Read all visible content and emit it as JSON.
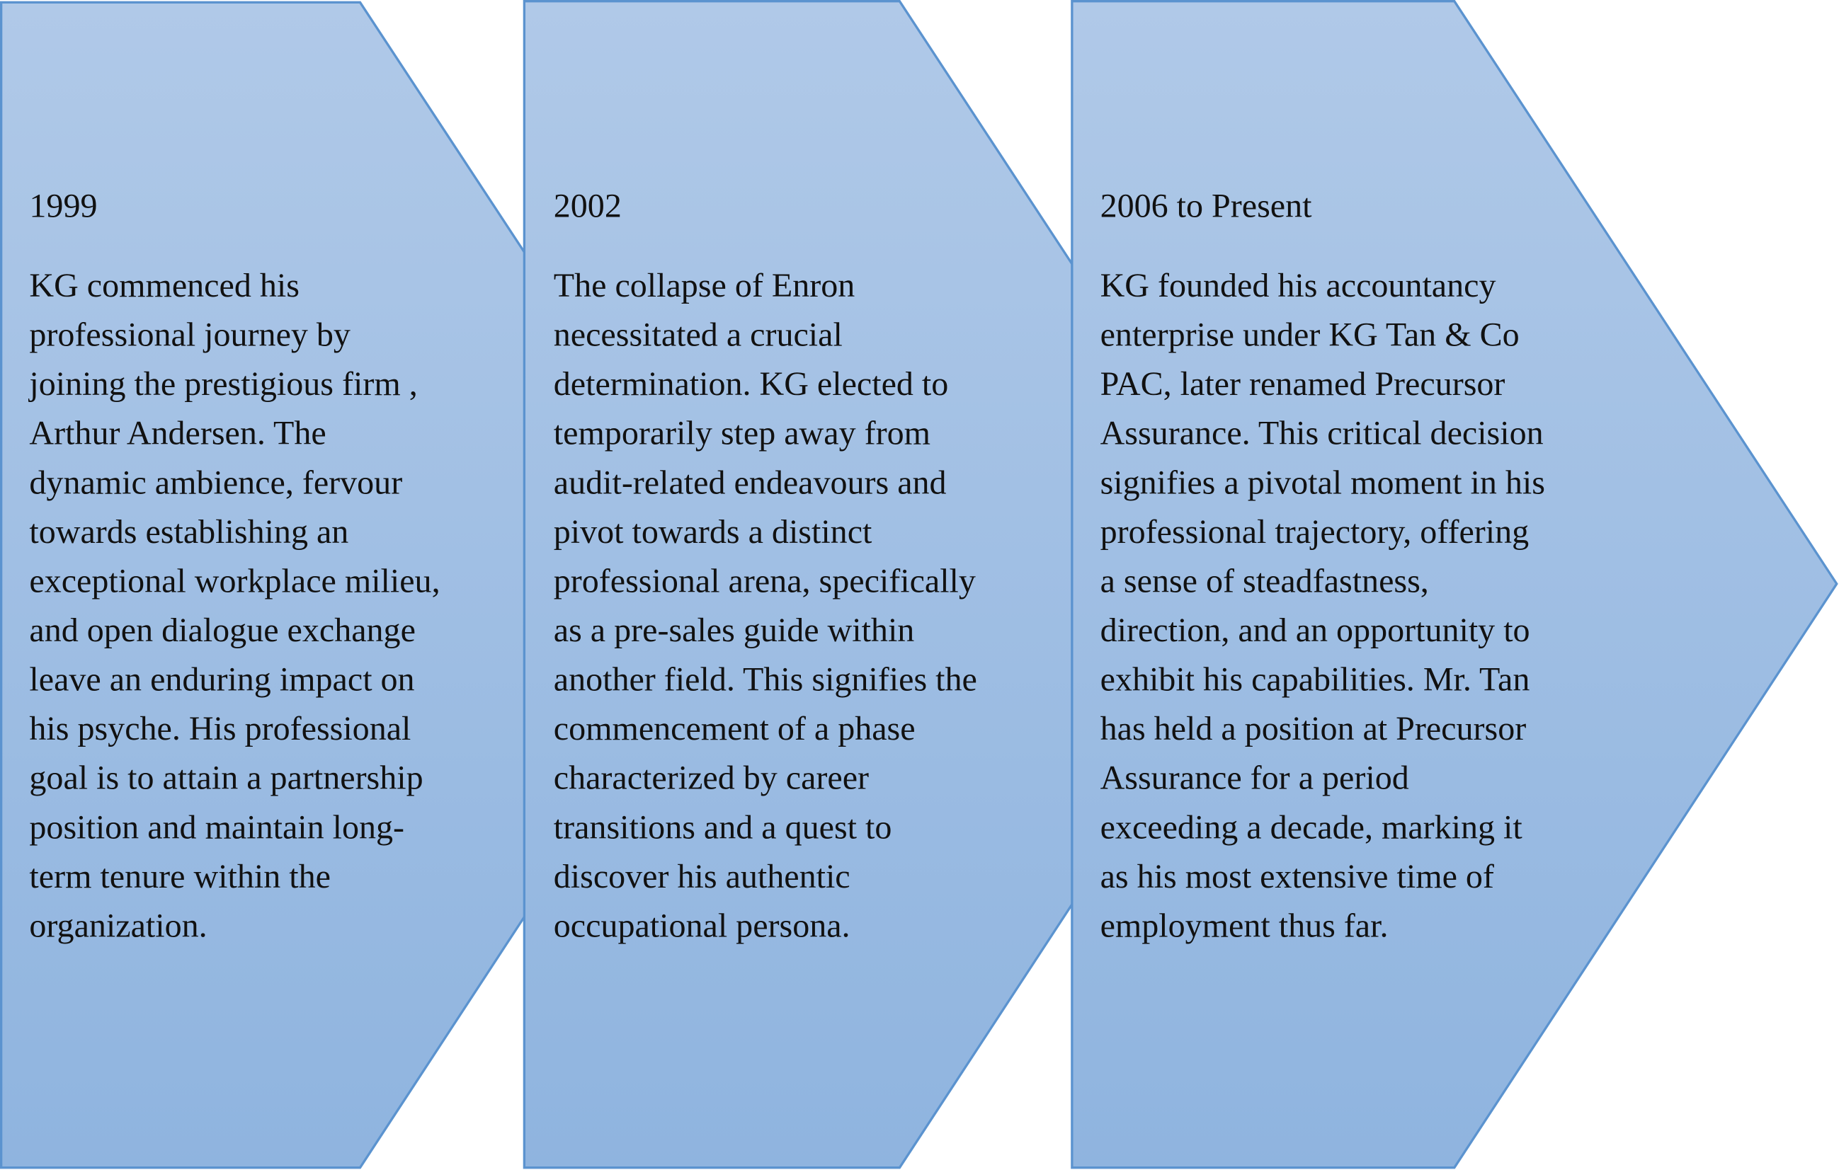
{
  "colors": {
    "fill_top": "#b0c9e8",
    "fill_bottom": "#8fb4df",
    "stroke": "#5b93cf"
  },
  "stages": [
    {
      "title": "1999",
      "lines": [
        "KG commenced his",
        "professional journey by",
        "joining the prestigious firm ,",
        " Arthur Andersen. The",
        "dynamic ambience, fervour",
        "towards establishing an",
        "exceptional workplace milieu,",
        "and open dialogue exchange",
        "leave an enduring impact on",
        "his psyche. His professional",
        "goal is to attain a partnership",
        "position and maintain long-",
        "term tenure within the",
        "organization."
      ]
    },
    {
      "title": "2002",
      "lines": [
        "The collapse of Enron",
        "necessitated a crucial",
        "determination. KG elected to",
        "temporarily step away from",
        "audit-related endeavours and",
        "pivot towards a distinct",
        "professional arena, specifically",
        "as a pre-sales guide within",
        "another field. This signifies the",
        "commencement of a phase",
        "characterized by career",
        "transitions and a quest to",
        "discover his authentic",
        "occupational persona."
      ]
    },
    {
      "title": "2006 to Present",
      "lines": [
        "KG founded his accountancy",
        "enterprise under KG Tan & Co",
        "PAC,  later renamed Precursor",
        "Assurance. This critical decision",
        "signifies a pivotal moment in his",
        "professional trajectory, offering",
        "a sense of steadfastness,",
        "direction, and an opportunity to",
        "exhibit his capabilities. Mr. Tan",
        "has held a position at Precursor",
        "Assurance for a period",
        "exceeding a decade, marking it",
        "as his most extensive time of",
        "employment thus far."
      ]
    }
  ]
}
